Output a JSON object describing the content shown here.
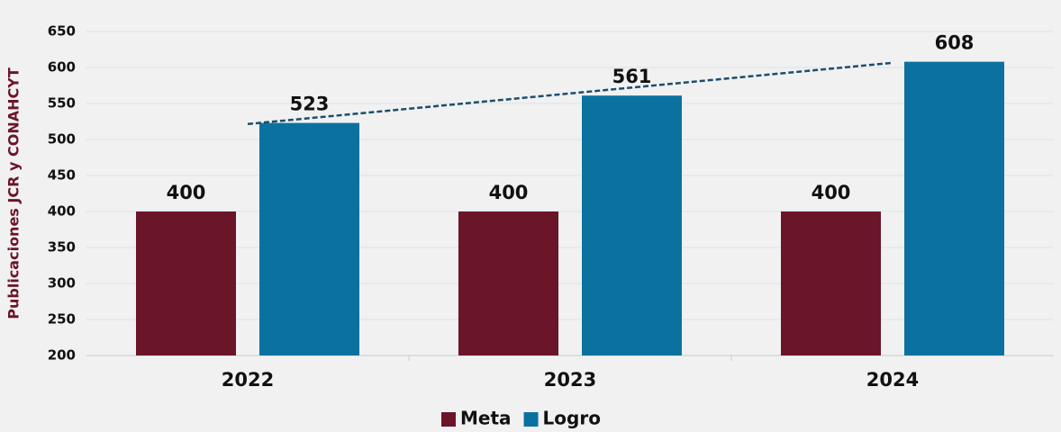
{
  "chart_data": {
    "type": "bar",
    "y_label": "Publicaciones JCR y CONAHCYT",
    "categories": [
      "2022",
      "2023",
      "2024"
    ],
    "series": [
      {
        "name": "Meta",
        "color": "#6b1529",
        "values": [
          400,
          400,
          400
        ]
      },
      {
        "name": "Logro",
        "color": "#0b72a0",
        "values": [
          523,
          561,
          608
        ]
      }
    ],
    "ylim": [
      200,
      650
    ],
    "yticks": [
      200,
      250,
      300,
      350,
      400,
      450,
      500,
      550,
      600,
      650
    ],
    "grid": true,
    "legend": "bottom",
    "trendline_series": 1
  }
}
